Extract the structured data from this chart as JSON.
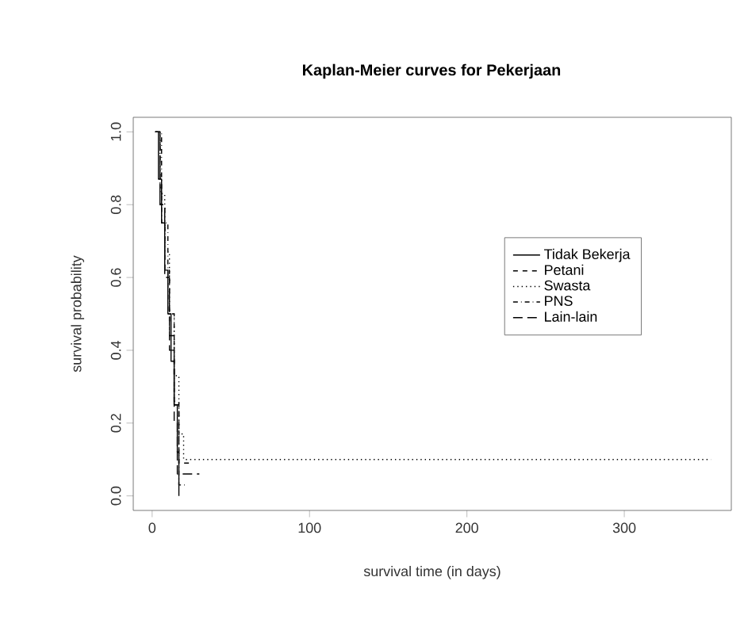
{
  "chart_data": {
    "type": "step",
    "title": "Kaplan-Meier curves for Pekerjaan",
    "xlabel": "survival time (in days)",
    "ylabel": "survival probability",
    "xlim": [
      -12,
      368
    ],
    "ylim": [
      -0.04,
      1.04
    ],
    "xticks": [
      0,
      100,
      200,
      300
    ],
    "yticks": [
      {
        "value": 0,
        "label": "0.0"
      },
      0.2,
      0.4,
      0.6,
      0.8,
      {
        "value": 1,
        "label": "1.0"
      }
    ],
    "legend": "right",
    "grid": false,
    "series": [
      {
        "name": "Tidak Bekerja",
        "color": "#000000",
        "line_style": "solid",
        "x": [
          2,
          4,
          6,
          8,
          10,
          12,
          14,
          16,
          17
        ],
        "values": [
          1.0,
          0.87,
          0.75,
          0.62,
          0.5,
          0.37,
          0.25,
          0.12,
          0.0
        ]
      },
      {
        "name": "Petani",
        "color": "#000000",
        "line_style": "dashed",
        "x": [
          2,
          5,
          8,
          11,
          14,
          17,
          25
        ],
        "values": [
          1.0,
          0.8,
          0.62,
          0.44,
          0.26,
          0.09,
          0.09
        ]
      },
      {
        "name": "Swasta",
        "color": "#000000",
        "line_style": "dotted",
        "x": [
          2,
          5,
          8,
          11,
          14,
          17,
          20,
          355
        ],
        "values": [
          1.0,
          0.83,
          0.67,
          0.5,
          0.33,
          0.17,
          0.1,
          0.1
        ]
      },
      {
        "name": "PNS",
        "color": "#000000",
        "line_style": "dashdotted",
        "x": [
          2,
          6,
          10,
          14,
          17,
          22
        ],
        "values": [
          1.0,
          0.75,
          0.5,
          0.25,
          0.03,
          0.03
        ]
      },
      {
        "name": "Lain-lain",
        "color": "#000000",
        "line_style": "longdashed",
        "x": [
          2,
          5,
          8,
          11,
          14,
          16,
          30
        ],
        "values": [
          1.0,
          0.8,
          0.6,
          0.4,
          0.2,
          0.06,
          0.06
        ]
      }
    ]
  }
}
